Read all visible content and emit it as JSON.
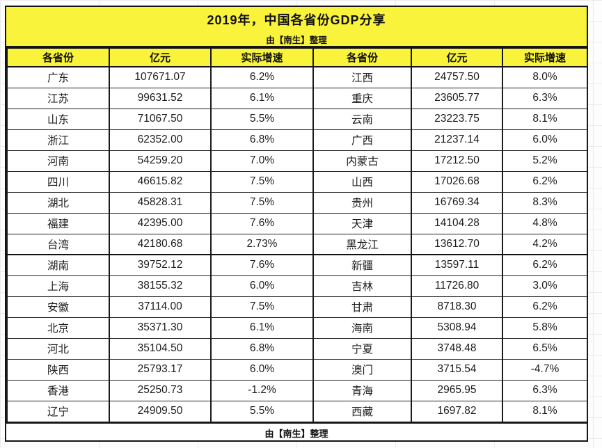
{
  "colors": {
    "header_bg": "#faf33b",
    "border": "#141414",
    "text": "#1c1c1c",
    "gridline": "#ebebeb"
  },
  "chart_data": {
    "type": "table",
    "title": "2019年，中国各省份GDP分享",
    "subtitle": "由【南生】整理",
    "footer": "由【南生】整理",
    "column_headers": [
      "各省份",
      "亿元",
      "实际增速"
    ],
    "rows": [
      [
        "广东",
        "107671.07",
        "6.2%",
        "江西",
        "24757.50",
        "8.0%"
      ],
      [
        "江苏",
        "99631.52",
        "6.1%",
        "重庆",
        "23605.77",
        "6.3%"
      ],
      [
        "山东",
        "71067.50",
        "5.5%",
        "云南",
        "23223.75",
        "8.1%"
      ],
      [
        "浙江",
        "62352.00",
        "6.8%",
        "广西",
        "21237.14",
        "6.0%"
      ],
      [
        "河南",
        "54259.20",
        "7.0%",
        "内蒙古",
        "17212.50",
        "5.2%"
      ],
      [
        "四川",
        "46615.82",
        "7.5%",
        "山西",
        "17026.68",
        "6.2%"
      ],
      [
        "湖北",
        "45828.31",
        "7.5%",
        "贵州",
        "16769.34",
        "8.3%"
      ],
      [
        "福建",
        "42395.00",
        "7.6%",
        "天津",
        "14104.28",
        "4.8%"
      ],
      [
        "台湾",
        "42180.68",
        "2.73%",
        "黑龙江",
        "13612.70",
        "4.2%"
      ],
      [
        "湖南",
        "39752.12",
        "7.6%",
        "新疆",
        "13597.11",
        "6.2%"
      ],
      [
        "上海",
        "38155.32",
        "6.0%",
        "吉林",
        "11726.80",
        "3.0%"
      ],
      [
        "安徽",
        "37114.00",
        "7.5%",
        "甘肃",
        "8718.30",
        "6.2%"
      ],
      [
        "北京",
        "35371.30",
        "6.1%",
        "海南",
        "5308.94",
        "5.8%"
      ],
      [
        "河北",
        "35104.50",
        "6.8%",
        "宁夏",
        "3748.48",
        "6.5%"
      ],
      [
        "陕西",
        "25793.17",
        "6.0%",
        "澳门",
        "3715.54",
        "-4.7%"
      ],
      [
        "香港",
        "25250.73",
        "-1.2%",
        "青海",
        "2965.95",
        "6.3%"
      ],
      [
        "辽宁",
        "24909.50",
        "5.5%",
        "西藏",
        "1697.82",
        "8.1%"
      ]
    ]
  }
}
